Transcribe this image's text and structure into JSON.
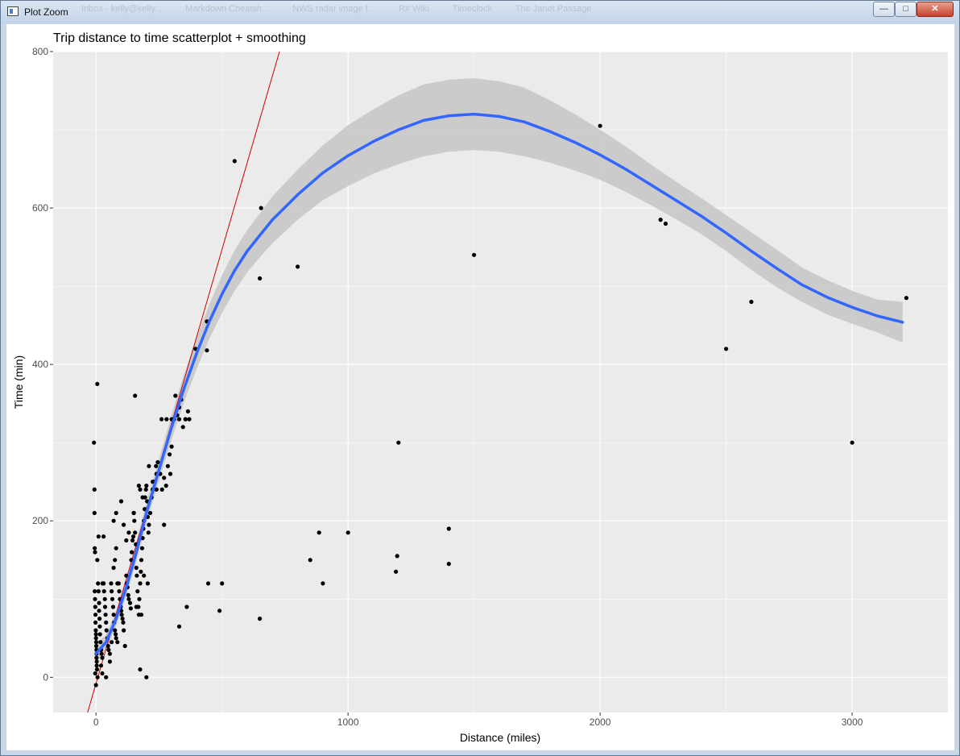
{
  "window": {
    "title": "Plot Zoom",
    "background_tabs": [
      "Inbox - kelly@kelly...",
      "Markdown Cheatsh...",
      "NWS radar image f...",
      "R# Wiki",
      "Timeclock",
      "The Janet Passage"
    ],
    "buttons": {
      "minimize": "—",
      "maximize": "□",
      "close": "✕"
    }
  },
  "chart_data": {
    "type": "scatter",
    "title": "Trip distance to time scatterplot + smoothing",
    "xlabel": "Distance (miles)",
    "ylabel": "Time (min)",
    "xlim": [
      -170,
      3380
    ],
    "ylim": [
      -45,
      800
    ],
    "x_ticks": [
      0,
      1000,
      2000,
      3000
    ],
    "x_tick_labels": [
      "0",
      "1000",
      "2000",
      "3000"
    ],
    "y_ticks": [
      0,
      200,
      400,
      600,
      800
    ],
    "y_tick_labels": [
      "0",
      "200",
      "400",
      "600",
      "800"
    ],
    "grid": true,
    "colors": {
      "panel": "#ebebeb",
      "grid": "#ffffff",
      "points": "#000000",
      "smooth": "#3366ff",
      "band": "#c8c8c8",
      "refline": "#cc0000"
    },
    "points": [
      [
        -8,
        300
      ],
      [
        -6,
        240
      ],
      [
        -6,
        210
      ],
      [
        -5,
        165
      ],
      [
        -4,
        160
      ],
      [
        5,
        375
      ],
      [
        10,
        180
      ],
      [
        5,
        150
      ],
      [
        -5,
        110
      ],
      [
        -4,
        100
      ],
      [
        -3,
        90
      ],
      [
        -2,
        80
      ],
      [
        -2,
        70
      ],
      [
        -1,
        60
      ],
      [
        0,
        55
      ],
      [
        0,
        50
      ],
      [
        1,
        45
      ],
      [
        1,
        40
      ],
      [
        2,
        35
      ],
      [
        2,
        30
      ],
      [
        2,
        25
      ],
      [
        3,
        20
      ],
      [
        3,
        15
      ],
      [
        4,
        10
      ],
      [
        -3,
        5
      ],
      [
        0,
        -10
      ],
      [
        6,
        0
      ],
      [
        8,
        120
      ],
      [
        10,
        110
      ],
      [
        12,
        95
      ],
      [
        12,
        85
      ],
      [
        14,
        75
      ],
      [
        15,
        65
      ],
      [
        16,
        55
      ],
      [
        18,
        45
      ],
      [
        20,
        35
      ],
      [
        22,
        30
      ],
      [
        25,
        25
      ],
      [
        26,
        120
      ],
      [
        30,
        120
      ],
      [
        32,
        110
      ],
      [
        35,
        100
      ],
      [
        36,
        90
      ],
      [
        38,
        80
      ],
      [
        40,
        70
      ],
      [
        42,
        60
      ],
      [
        45,
        50
      ],
      [
        48,
        40
      ],
      [
        50,
        35
      ],
      [
        55,
        30
      ],
      [
        30,
        180
      ],
      [
        60,
        120
      ],
      [
        62,
        110
      ],
      [
        65,
        100
      ],
      [
        68,
        90
      ],
      [
        70,
        80
      ],
      [
        72,
        70
      ],
      [
        75,
        60
      ],
      [
        78,
        55
      ],
      [
        80,
        50
      ],
      [
        85,
        45
      ],
      [
        20,
        15
      ],
      [
        25,
        5
      ],
      [
        40,
        0
      ],
      [
        55,
        20
      ],
      [
        62,
        45
      ],
      [
        70,
        140
      ],
      [
        75,
        150
      ],
      [
        80,
        165
      ],
      [
        85,
        120
      ],
      [
        90,
        120
      ],
      [
        92,
        110
      ],
      [
        95,
        100
      ],
      [
        98,
        90
      ],
      [
        100,
        85
      ],
      [
        102,
        80
      ],
      [
        105,
        75
      ],
      [
        108,
        70
      ],
      [
        110,
        60
      ],
      [
        115,
        40
      ],
      [
        120,
        130
      ],
      [
        122,
        120
      ],
      [
        125,
        115
      ],
      [
        128,
        105
      ],
      [
        130,
        100
      ],
      [
        135,
        95
      ],
      [
        138,
        88
      ],
      [
        140,
        150
      ],
      [
        142,
        160
      ],
      [
        145,
        175
      ],
      [
        148,
        180
      ],
      [
        150,
        210
      ],
      [
        152,
        200
      ],
      [
        155,
        185
      ],
      [
        158,
        170
      ],
      [
        160,
        140
      ],
      [
        162,
        130
      ],
      [
        165,
        110
      ],
      [
        168,
        90
      ],
      [
        170,
        80
      ],
      [
        172,
        100
      ],
      [
        175,
        120
      ],
      [
        178,
        135
      ],
      [
        180,
        150
      ],
      [
        183,
        165
      ],
      [
        185,
        178
      ],
      [
        188,
        190
      ],
      [
        190,
        200
      ],
      [
        193,
        215
      ],
      [
        195,
        230
      ],
      [
        198,
        240
      ],
      [
        200,
        245
      ],
      [
        203,
        225
      ],
      [
        205,
        205
      ],
      [
        208,
        185
      ],
      [
        210,
        195
      ],
      [
        215,
        210
      ],
      [
        220,
        230
      ],
      [
        225,
        240
      ],
      [
        230,
        250
      ],
      [
        238,
        270
      ],
      [
        245,
        275
      ],
      [
        255,
        260
      ],
      [
        262,
        240
      ],
      [
        270,
        255
      ],
      [
        278,
        245
      ],
      [
        285,
        270
      ],
      [
        292,
        285
      ],
      [
        300,
        295
      ],
      [
        310,
        330
      ],
      [
        322,
        335
      ],
      [
        330,
        345
      ],
      [
        338,
        355
      ],
      [
        345,
        320
      ],
      [
        355,
        330
      ],
      [
        365,
        340
      ],
      [
        70,
        200
      ],
      [
        80,
        210
      ],
      [
        100,
        225
      ],
      [
        110,
        195
      ],
      [
        120,
        175
      ],
      [
        130,
        185
      ],
      [
        150,
        210
      ],
      [
        155,
        360
      ],
      [
        170,
        245
      ],
      [
        175,
        240
      ],
      [
        185,
        230
      ],
      [
        195,
        215
      ],
      [
        210,
        270
      ],
      [
        225,
        250
      ],
      [
        240,
        240
      ],
      [
        260,
        330
      ],
      [
        280,
        330
      ],
      [
        300,
        330
      ],
      [
        315,
        360
      ],
      [
        330,
        330
      ],
      [
        355,
        330
      ],
      [
        370,
        330
      ],
      [
        175,
        10
      ],
      [
        200,
        0
      ],
      [
        180,
        80
      ],
      [
        160,
        90
      ],
      [
        190,
        130
      ],
      [
        205,
        120
      ],
      [
        240,
        260
      ],
      [
        270,
        195
      ],
      [
        295,
        260
      ],
      [
        330,
        65
      ],
      [
        360,
        90
      ],
      [
        395,
        420
      ],
      [
        440,
        455
      ],
      [
        440,
        418
      ],
      [
        445,
        120
      ],
      [
        490,
        85
      ],
      [
        500,
        120
      ],
      [
        550,
        660
      ],
      [
        650,
        510
      ],
      [
        650,
        75
      ],
      [
        655,
        600
      ],
      [
        800,
        525
      ],
      [
        850,
        150
      ],
      [
        885,
        185
      ],
      [
        900,
        120
      ],
      [
        1000,
        185
      ],
      [
        1190,
        135
      ],
      [
        1195,
        155
      ],
      [
        1200,
        300
      ],
      [
        1400,
        190
      ],
      [
        1400,
        145
      ],
      [
        1500,
        540
      ],
      [
        2000,
        705
      ],
      [
        2240,
        585
      ],
      [
        2260,
        580
      ],
      [
        2500,
        420
      ],
      [
        2600,
        480
      ],
      [
        3000,
        300
      ],
      [
        3215,
        485
      ]
    ],
    "smooth_line": [
      [
        0,
        30
      ],
      [
        40,
        45
      ],
      [
        80,
        75
      ],
      [
        120,
        115
      ],
      [
        160,
        160
      ],
      [
        200,
        210
      ],
      [
        250,
        265
      ],
      [
        300,
        320
      ],
      [
        350,
        370
      ],
      [
        400,
        415
      ],
      [
        450,
        455
      ],
      [
        500,
        490
      ],
      [
        550,
        520
      ],
      [
        600,
        545
      ],
      [
        650,
        565
      ],
      [
        700,
        585
      ],
      [
        800,
        617
      ],
      [
        900,
        645
      ],
      [
        1000,
        667
      ],
      [
        1100,
        685
      ],
      [
        1200,
        700
      ],
      [
        1300,
        712
      ],
      [
        1400,
        718
      ],
      [
        1500,
        720
      ],
      [
        1600,
        717
      ],
      [
        1700,
        710
      ],
      [
        1800,
        698
      ],
      [
        1900,
        684
      ],
      [
        2000,
        668
      ],
      [
        2100,
        650
      ],
      [
        2200,
        630
      ],
      [
        2300,
        610
      ],
      [
        2400,
        590
      ],
      [
        2500,
        568
      ],
      [
        2600,
        545
      ],
      [
        2700,
        523
      ],
      [
        2800,
        502
      ],
      [
        2900,
        486
      ],
      [
        3000,
        473
      ],
      [
        3100,
        462
      ],
      [
        3200,
        454
      ]
    ],
    "smooth_band": [
      [
        0,
        18,
        42
      ],
      [
        40,
        35,
        55
      ],
      [
        80,
        65,
        85
      ],
      [
        120,
        104,
        126
      ],
      [
        160,
        148,
        172
      ],
      [
        200,
        197,
        223
      ],
      [
        250,
        251,
        279
      ],
      [
        300,
        304,
        336
      ],
      [
        350,
        352,
        388
      ],
      [
        400,
        395,
        435
      ],
      [
        450,
        433,
        477
      ],
      [
        500,
        466,
        514
      ],
      [
        550,
        494,
        546
      ],
      [
        600,
        518,
        572
      ],
      [
        650,
        537,
        593
      ],
      [
        700,
        555,
        615
      ],
      [
        800,
        585,
        649
      ],
      [
        900,
        610,
        680
      ],
      [
        1000,
        628,
        706
      ],
      [
        1100,
        644,
        726
      ],
      [
        1200,
        656,
        744
      ],
      [
        1300,
        666,
        758
      ],
      [
        1400,
        672,
        764
      ],
      [
        1500,
        674,
        766
      ],
      [
        1600,
        672,
        762
      ],
      [
        1700,
        666,
        754
      ],
      [
        1800,
        658,
        738
      ],
      [
        1900,
        648,
        720
      ],
      [
        2000,
        636,
        700
      ],
      [
        2100,
        621,
        679
      ],
      [
        2200,
        604,
        656
      ],
      [
        2300,
        586,
        634
      ],
      [
        2400,
        567,
        613
      ],
      [
        2500,
        545,
        591
      ],
      [
        2600,
        521,
        569
      ],
      [
        2700,
        499,
        547
      ],
      [
        2800,
        480,
        524
      ],
      [
        2900,
        464,
        508
      ],
      [
        3000,
        452,
        494
      ],
      [
        3100,
        441,
        483
      ],
      [
        3200,
        428,
        480
      ]
    ],
    "reference_line": {
      "slope": 1.11,
      "intercept": -8
    }
  }
}
